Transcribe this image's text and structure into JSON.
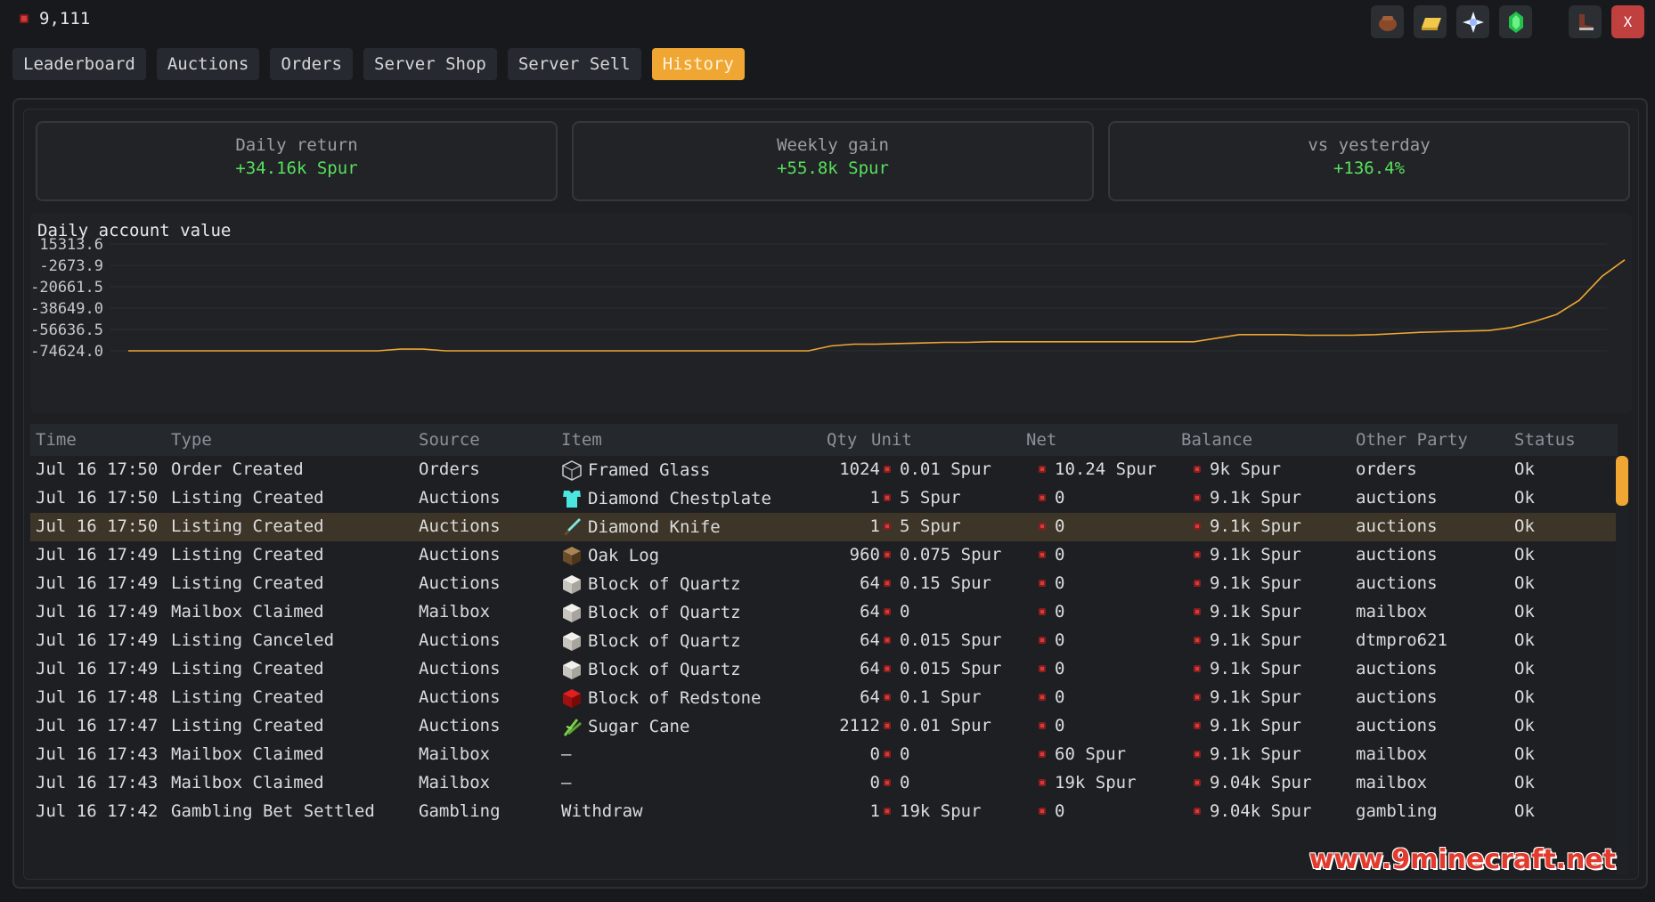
{
  "header": {
    "balance": "9,111",
    "icons": [
      "leather-bag-icon",
      "gold-ingot-icon",
      "nether-star-icon",
      "emerald-icon",
      "boot-icon"
    ],
    "close_label": "X"
  },
  "tabs": [
    "Leaderboard",
    "Auctions",
    "Orders",
    "Server Shop",
    "Server Sell",
    "History"
  ],
  "active_tab": "History",
  "stats": [
    {
      "label": "Daily return",
      "value": "+34.16k Spur"
    },
    {
      "label": "Weekly gain",
      "value": "+55.8k Spur"
    },
    {
      "label": "vs yesterday",
      "value": "+136.4%"
    }
  ],
  "chart_data": {
    "type": "line",
    "title": "Daily account value",
    "ytick_labels": [
      "15313.6",
      "-2673.9",
      "-20661.5",
      "-38649.0",
      "-56636.5",
      "-74624.0"
    ],
    "ylim": [
      -74624.0,
      15313.6
    ],
    "x": [
      0,
      1,
      2,
      3,
      4,
      5,
      6,
      7,
      8,
      9,
      10,
      11,
      12,
      13,
      14,
      15,
      16,
      17,
      18,
      19,
      20,
      21,
      22,
      23,
      24,
      25,
      26,
      27,
      28,
      29,
      30,
      31,
      32,
      33,
      34,
      35,
      36,
      37,
      38,
      39,
      40,
      41,
      42,
      43,
      44,
      45,
      46,
      47,
      48,
      49,
      50,
      51,
      52,
      53,
      54,
      55,
      56,
      57,
      58,
      59,
      60
    ],
    "series": [
      {
        "values": [
          -74624,
          -74624,
          -74624,
          -74624,
          -74624,
          -74624,
          -74624,
          -74624,
          -74624,
          -74624,
          -74624,
          -74624,
          -73200,
          -73200,
          -74624,
          -74624,
          -74624,
          -74624,
          -74624,
          -74624,
          -74624,
          -74624,
          -74624,
          -74624,
          -74624,
          -74624,
          -74624,
          -74624,
          -74624,
          -74624,
          -74624,
          -70500,
          -69000,
          -69000,
          -68500,
          -68000,
          -67500,
          -67500,
          -67000,
          -67000,
          -67000,
          -67000,
          -67000,
          -67000,
          -67000,
          -67000,
          -67000,
          -67000,
          -64000,
          -61000,
          -61000,
          -61000,
          -61500,
          -61500,
          -61500,
          -61000,
          -60000,
          -59000,
          -58500,
          -58000,
          -57500
        ],
        "tail_values": [
          -55000,
          -50000,
          -44000,
          -32000,
          -12000,
          2000
        ],
        "color": "#f0a632"
      }
    ],
    "grid": true
  },
  "table": {
    "columns": [
      "Time",
      "Type",
      "Source",
      "Item",
      "Qty",
      "Unit",
      "Net",
      "Balance",
      "Other Party",
      "Status"
    ],
    "rows": [
      {
        "time": "Jul 16 17:50",
        "type": "Order Created",
        "source": "Orders",
        "item": "Framed Glass",
        "icon": "glass-icon",
        "qty": "1024",
        "unit": "0.01 Spur",
        "net": "10.24 Spur",
        "balance": "9k Spur",
        "party": "orders",
        "status": "Ok"
      },
      {
        "time": "Jul 16 17:50",
        "type": "Listing Created",
        "source": "Auctions",
        "item": "Diamond Chestplate",
        "icon": "chestplate-icon",
        "qty": "1",
        "unit": "5 Spur",
        "net": "0",
        "balance": "9.1k Spur",
        "party": "auctions",
        "status": "Ok"
      },
      {
        "time": "Jul 16 17:50",
        "type": "Listing Created",
        "source": "Auctions",
        "item": "Diamond Knife",
        "icon": "knife-icon",
        "qty": "1",
        "unit": "5 Spur",
        "net": "0",
        "balance": "9.1k Spur",
        "party": "auctions",
        "status": "Ok",
        "selected": true
      },
      {
        "time": "Jul 16 17:49",
        "type": "Listing Created",
        "source": "Auctions",
        "item": "Oak Log",
        "icon": "oak-log-icon",
        "qty": "960",
        "unit": "0.075 Spur",
        "net": "0",
        "balance": "9.1k Spur",
        "party": "auctions",
        "status": "Ok"
      },
      {
        "time": "Jul 16 17:49",
        "type": "Listing Created",
        "source": "Auctions",
        "item": "Block of Quartz",
        "icon": "quartz-block-icon",
        "qty": "64",
        "unit": "0.15 Spur",
        "net": "0",
        "balance": "9.1k Spur",
        "party": "auctions",
        "status": "Ok"
      },
      {
        "time": "Jul 16 17:49",
        "type": "Mailbox Claimed",
        "source": "Mailbox",
        "item": "Block of Quartz",
        "icon": "quartz-block-icon",
        "qty": "64",
        "unit": "0",
        "net": "0",
        "balance": "9.1k Spur",
        "party": "mailbox",
        "status": "Ok"
      },
      {
        "time": "Jul 16 17:49",
        "type": "Listing Canceled",
        "source": "Auctions",
        "item": "Block of Quartz",
        "icon": "quartz-block-icon",
        "qty": "64",
        "unit": "0.015 Spur",
        "net": "0",
        "balance": "9.1k Spur",
        "party": "dtmpro621",
        "status": "Ok"
      },
      {
        "time": "Jul 16 17:49",
        "type": "Listing Created",
        "source": "Auctions",
        "item": "Block of Quartz",
        "icon": "quartz-block-icon",
        "qty": "64",
        "unit": "0.015 Spur",
        "net": "0",
        "balance": "9.1k Spur",
        "party": "auctions",
        "status": "Ok"
      },
      {
        "time": "Jul 16 17:48",
        "type": "Listing Created",
        "source": "Auctions",
        "item": "Block of Redstone",
        "icon": "redstone-block-icon",
        "qty": "64",
        "unit": "0.1 Spur",
        "net": "0",
        "balance": "9.1k Spur",
        "party": "auctions",
        "status": "Ok"
      },
      {
        "time": "Jul 16 17:47",
        "type": "Listing Created",
        "source": "Auctions",
        "item": "Sugar Cane",
        "icon": "sugar-cane-icon",
        "qty": "2112",
        "unit": "0.01 Spur",
        "net": "0",
        "balance": "9.1k Spur",
        "party": "auctions",
        "status": "Ok"
      },
      {
        "time": "Jul 16 17:43",
        "type": "Mailbox Claimed",
        "source": "Mailbox",
        "item": "—",
        "icon": "",
        "qty": "0",
        "unit": "0",
        "net": "60 Spur",
        "balance": "9.1k Spur",
        "party": "mailbox",
        "status": "Ok"
      },
      {
        "time": "Jul 16 17:43",
        "type": "Mailbox Claimed",
        "source": "Mailbox",
        "item": "—",
        "icon": "",
        "qty": "0",
        "unit": "0",
        "net": "19k Spur",
        "balance": "9.04k Spur",
        "party": "mailbox",
        "status": "Ok"
      },
      {
        "time": "Jul 16 17:42",
        "type": "Gambling Bet Settled",
        "source": "Gambling",
        "item": "Withdraw",
        "icon": "",
        "qty": "1",
        "unit": "19k Spur",
        "net": "0",
        "balance": "9.04k Spur",
        "party": "gambling",
        "status": "Ok"
      }
    ]
  },
  "watermark": "www.9minecraft.net"
}
